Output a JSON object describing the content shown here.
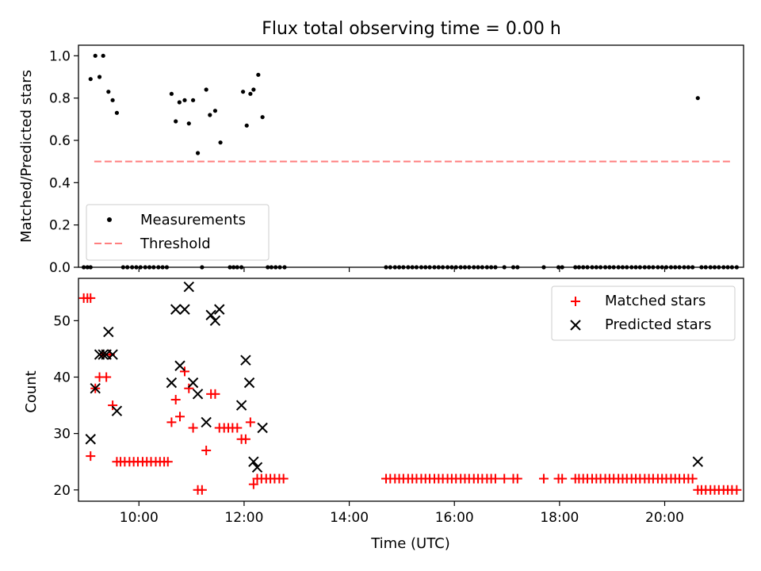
{
  "figure": {
    "title": "Flux total observing time = 0.00 h"
  },
  "chart_data": [
    {
      "type": "scatter",
      "ylabel": "Matched/Predicted stars",
      "xlabel": "",
      "xlim": [
        8.85,
        21.5
      ],
      "ylim": [
        0.0,
        1.05
      ],
      "x_ticks": [
        10,
        12,
        14,
        16,
        18,
        20
      ],
      "y_ticks": [
        0.0,
        0.2,
        0.4,
        0.6,
        0.8,
        1.0
      ],
      "y_tick_labels": [
        "0.0",
        "0.2",
        "0.4",
        "0.6",
        "0.8",
        "1.0"
      ],
      "show_x_tick_labels": false,
      "grid": false,
      "legend_position": "lower-left",
      "threshold": {
        "name": "Threshold",
        "y": 0.5,
        "x_start": 9.15,
        "x_end": 21.28,
        "color": "#ff7f7f",
        "style": "dashed"
      },
      "series": [
        {
          "name": "Measurements",
          "marker": "dot",
          "color": "#000000",
          "points": [
            [
              9.08,
              0.89
            ],
            [
              9.17,
              1.0
            ],
            [
              9.25,
              0.9
            ],
            [
              9.32,
              1.0
            ],
            [
              9.42,
              0.83
            ],
            [
              9.5,
              0.79
            ],
            [
              9.58,
              0.73
            ],
            [
              10.62,
              0.82
            ],
            [
              10.7,
              0.69
            ],
            [
              10.77,
              0.78
            ],
            [
              10.87,
              0.79
            ],
            [
              10.95,
              0.68
            ],
            [
              11.03,
              0.79
            ],
            [
              11.12,
              0.54
            ],
            [
              11.28,
              0.84
            ],
            [
              11.35,
              0.72
            ],
            [
              11.45,
              0.74
            ],
            [
              11.55,
              0.59
            ],
            [
              11.98,
              0.83
            ],
            [
              12.05,
              0.67
            ],
            [
              12.12,
              0.82
            ],
            [
              12.18,
              0.84
            ],
            [
              12.27,
              0.91
            ],
            [
              12.35,
              0.71
            ],
            [
              20.63,
              0.8
            ],
            [
              8.95,
              0.0
            ],
            [
              9.02,
              0.0
            ],
            [
              9.08,
              0.0
            ],
            [
              9.7,
              0.0
            ],
            [
              9.78,
              0.0
            ],
            [
              9.87,
              0.0
            ],
            [
              9.95,
              0.0
            ],
            [
              10.03,
              0.0
            ],
            [
              10.12,
              0.0
            ],
            [
              10.2,
              0.0
            ],
            [
              10.28,
              0.0
            ],
            [
              10.37,
              0.0
            ],
            [
              10.45,
              0.0
            ],
            [
              10.53,
              0.0
            ],
            [
              11.2,
              0.0
            ],
            [
              11.73,
              0.0
            ],
            [
              11.8,
              0.0
            ],
            [
              11.87,
              0.0
            ],
            [
              11.95,
              0.0
            ],
            [
              12.45,
              0.0
            ],
            [
              12.52,
              0.0
            ],
            [
              12.6,
              0.0
            ],
            [
              12.68,
              0.0
            ],
            [
              12.77,
              0.0
            ],
            [
              14.7,
              0.0
            ],
            [
              14.78,
              0.0
            ],
            [
              14.87,
              0.0
            ],
            [
              14.95,
              0.0
            ],
            [
              15.03,
              0.0
            ],
            [
              15.12,
              0.0
            ],
            [
              15.2,
              0.0
            ],
            [
              15.28,
              0.0
            ],
            [
              15.37,
              0.0
            ],
            [
              15.45,
              0.0
            ],
            [
              15.53,
              0.0
            ],
            [
              15.62,
              0.0
            ],
            [
              15.7,
              0.0
            ],
            [
              15.78,
              0.0
            ],
            [
              15.87,
              0.0
            ],
            [
              15.95,
              0.0
            ],
            [
              16.03,
              0.0
            ],
            [
              16.12,
              0.0
            ],
            [
              16.2,
              0.0
            ],
            [
              16.28,
              0.0
            ],
            [
              16.37,
              0.0
            ],
            [
              16.45,
              0.0
            ],
            [
              16.53,
              0.0
            ],
            [
              16.62,
              0.0
            ],
            [
              16.7,
              0.0
            ],
            [
              16.78,
              0.0
            ],
            [
              16.95,
              0.0
            ],
            [
              17.12,
              0.0
            ],
            [
              17.2,
              0.0
            ],
            [
              17.7,
              0.0
            ],
            [
              17.98,
              0.0
            ],
            [
              18.05,
              0.0
            ],
            [
              18.3,
              0.0
            ],
            [
              18.37,
              0.0
            ],
            [
              18.45,
              0.0
            ],
            [
              18.53,
              0.0
            ],
            [
              18.62,
              0.0
            ],
            [
              18.7,
              0.0
            ],
            [
              18.78,
              0.0
            ],
            [
              18.87,
              0.0
            ],
            [
              18.95,
              0.0
            ],
            [
              19.03,
              0.0
            ],
            [
              19.12,
              0.0
            ],
            [
              19.2,
              0.0
            ],
            [
              19.28,
              0.0
            ],
            [
              19.37,
              0.0
            ],
            [
              19.45,
              0.0
            ],
            [
              19.53,
              0.0
            ],
            [
              19.62,
              0.0
            ],
            [
              19.7,
              0.0
            ],
            [
              19.78,
              0.0
            ],
            [
              19.87,
              0.0
            ],
            [
              19.95,
              0.0
            ],
            [
              20.03,
              0.0
            ],
            [
              20.12,
              0.0
            ],
            [
              20.2,
              0.0
            ],
            [
              20.28,
              0.0
            ],
            [
              20.37,
              0.0
            ],
            [
              20.45,
              0.0
            ],
            [
              20.53,
              0.0
            ],
            [
              20.7,
              0.0
            ],
            [
              20.78,
              0.0
            ],
            [
              20.87,
              0.0
            ],
            [
              20.95,
              0.0
            ],
            [
              21.03,
              0.0
            ],
            [
              21.12,
              0.0
            ],
            [
              21.2,
              0.0
            ],
            [
              21.28,
              0.0
            ],
            [
              21.37,
              0.0
            ]
          ]
        }
      ]
    },
    {
      "type": "scatter",
      "xlabel": "Time (UTC)",
      "ylabel": "Count",
      "xlim": [
        8.85,
        21.5
      ],
      "ylim": [
        18.0,
        57.5
      ],
      "x_ticks": [
        10,
        12,
        14,
        16,
        18,
        20
      ],
      "x_tick_labels": [
        "10:00",
        "12:00",
        "14:00",
        "16:00",
        "18:00",
        "20:00"
      ],
      "y_ticks": [
        20,
        30,
        40,
        50
      ],
      "y_tick_labels": [
        "20",
        "30",
        "40",
        "50"
      ],
      "grid": false,
      "legend_position": "top-right",
      "series": [
        {
          "name": "Matched stars",
          "marker": "plus",
          "color": "#ff0000",
          "points": [
            [
              8.95,
              54
            ],
            [
              9.02,
              54
            ],
            [
              9.08,
              54
            ],
            [
              9.08,
              26
            ],
            [
              9.17,
              38
            ],
            [
              9.25,
              40
            ],
            [
              9.32,
              44
            ],
            [
              9.38,
              40
            ],
            [
              9.45,
              44
            ],
            [
              9.5,
              35
            ],
            [
              9.58,
              25
            ],
            [
              9.65,
              25
            ],
            [
              9.73,
              25
            ],
            [
              9.82,
              25
            ],
            [
              9.9,
              25
            ],
            [
              9.98,
              25
            ],
            [
              10.07,
              25
            ],
            [
              10.15,
              25
            ],
            [
              10.23,
              25
            ],
            [
              10.32,
              25
            ],
            [
              10.4,
              25
            ],
            [
              10.48,
              25
            ],
            [
              10.55,
              25
            ],
            [
              10.62,
              32
            ],
            [
              10.7,
              36
            ],
            [
              10.78,
              33
            ],
            [
              10.87,
              41
            ],
            [
              10.95,
              38
            ],
            [
              11.03,
              31
            ],
            [
              11.12,
              20
            ],
            [
              11.2,
              20
            ],
            [
              11.28,
              27
            ],
            [
              11.37,
              37
            ],
            [
              11.45,
              37
            ],
            [
              11.53,
              31
            ],
            [
              11.62,
              31
            ],
            [
              11.7,
              31
            ],
            [
              11.78,
              31
            ],
            [
              11.87,
              31
            ],
            [
              11.95,
              29
            ],
            [
              12.03,
              29
            ],
            [
              12.12,
              32
            ],
            [
              12.18,
              21
            ],
            [
              12.25,
              22
            ],
            [
              12.33,
              22
            ],
            [
              12.42,
              22
            ],
            [
              12.5,
              22
            ],
            [
              12.58,
              22
            ],
            [
              12.67,
              22
            ],
            [
              12.75,
              22
            ],
            [
              14.7,
              22
            ],
            [
              14.78,
              22
            ],
            [
              14.87,
              22
            ],
            [
              14.95,
              22
            ],
            [
              15.03,
              22
            ],
            [
              15.12,
              22
            ],
            [
              15.2,
              22
            ],
            [
              15.28,
              22
            ],
            [
              15.37,
              22
            ],
            [
              15.45,
              22
            ],
            [
              15.53,
              22
            ],
            [
              15.62,
              22
            ],
            [
              15.7,
              22
            ],
            [
              15.78,
              22
            ],
            [
              15.87,
              22
            ],
            [
              15.95,
              22
            ],
            [
              16.03,
              22
            ],
            [
              16.12,
              22
            ],
            [
              16.2,
              22
            ],
            [
              16.28,
              22
            ],
            [
              16.37,
              22
            ],
            [
              16.45,
              22
            ],
            [
              16.53,
              22
            ],
            [
              16.62,
              22
            ],
            [
              16.7,
              22
            ],
            [
              16.78,
              22
            ],
            [
              16.95,
              22
            ],
            [
              17.12,
              22
            ],
            [
              17.2,
              22
            ],
            [
              17.7,
              22
            ],
            [
              17.98,
              22
            ],
            [
              18.05,
              22
            ],
            [
              18.3,
              22
            ],
            [
              18.37,
              22
            ],
            [
              18.45,
              22
            ],
            [
              18.53,
              22
            ],
            [
              18.62,
              22
            ],
            [
              18.7,
              22
            ],
            [
              18.78,
              22
            ],
            [
              18.87,
              22
            ],
            [
              18.95,
              22
            ],
            [
              19.03,
              22
            ],
            [
              19.12,
              22
            ],
            [
              19.2,
              22
            ],
            [
              19.28,
              22
            ],
            [
              19.37,
              22
            ],
            [
              19.45,
              22
            ],
            [
              19.53,
              22
            ],
            [
              19.62,
              22
            ],
            [
              19.7,
              22
            ],
            [
              19.78,
              22
            ],
            [
              19.87,
              22
            ],
            [
              19.95,
              22
            ],
            [
              20.03,
              22
            ],
            [
              20.12,
              22
            ],
            [
              20.2,
              22
            ],
            [
              20.28,
              22
            ],
            [
              20.37,
              22
            ],
            [
              20.45,
              22
            ],
            [
              20.53,
              22
            ],
            [
              20.63,
              20
            ],
            [
              20.7,
              20
            ],
            [
              20.78,
              20
            ],
            [
              20.87,
              20
            ],
            [
              20.95,
              20
            ],
            [
              21.03,
              20
            ],
            [
              21.12,
              20
            ],
            [
              21.2,
              20
            ],
            [
              21.28,
              20
            ],
            [
              21.37,
              20
            ]
          ]
        },
        {
          "name": "Predicted stars",
          "marker": "x",
          "color": "#000000",
          "points": [
            [
              9.08,
              29
            ],
            [
              9.17,
              38
            ],
            [
              9.25,
              44
            ],
            [
              9.32,
              44
            ],
            [
              9.38,
              44
            ],
            [
              9.42,
              48
            ],
            [
              9.5,
              44
            ],
            [
              9.58,
              34
            ],
            [
              10.62,
              39
            ],
            [
              10.7,
              52
            ],
            [
              10.78,
              42
            ],
            [
              10.87,
              52
            ],
            [
              10.95,
              56
            ],
            [
              11.03,
              39
            ],
            [
              11.12,
              37
            ],
            [
              11.28,
              32
            ],
            [
              11.37,
              51
            ],
            [
              11.45,
              50
            ],
            [
              11.53,
              52
            ],
            [
              11.95,
              35
            ],
            [
              12.03,
              43
            ],
            [
              12.1,
              39
            ],
            [
              12.18,
              25
            ],
            [
              12.25,
              24
            ],
            [
              12.35,
              31
            ],
            [
              20.63,
              25
            ]
          ]
        }
      ]
    }
  ]
}
